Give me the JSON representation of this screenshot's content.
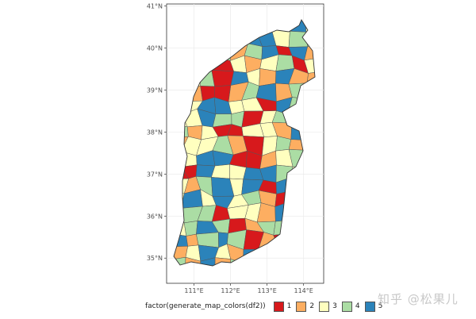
{
  "map": {
    "lat_ticks": [
      "41°N",
      "40°N",
      "39°N",
      "38°N",
      "37°N",
      "36°N",
      "35°N"
    ],
    "lon_ticks": [
      "111°E",
      "112°E",
      "113°E",
      "114°E"
    ],
    "extent": {
      "lon": [
        110.25,
        114.55
      ],
      "lat": [
        34.4,
        41.05
      ]
    }
  },
  "legend": {
    "title": "factor(generate_map_colors(df2))",
    "items": [
      {
        "label": "1",
        "color": "#d7191c"
      },
      {
        "label": "2",
        "color": "#fdae61"
      },
      {
        "label": "3",
        "color": "#ffffbf"
      },
      {
        "label": "4",
        "color": "#abdda4"
      },
      {
        "label": "5",
        "color": "#2b83ba"
      }
    ]
  },
  "watermark": "知乎 @松果儿"
}
